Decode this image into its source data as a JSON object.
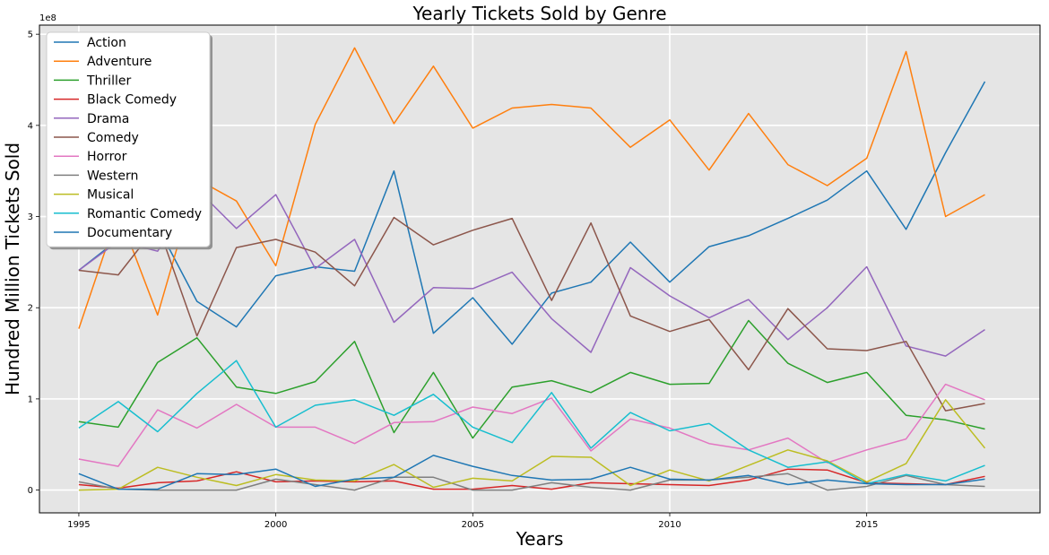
{
  "chart_data": {
    "type": "line",
    "title": "Yearly Tickets Sold by Genre",
    "xlabel": "Years",
    "ylabel": "Hundred Million Tickets Sold",
    "y_offset_label": "1e8",
    "xlim": [
      1994,
      2019.4
    ],
    "ylim": [
      -0.25,
      5.1
    ],
    "xticks": [
      1995,
      2000,
      2005,
      2010,
      2015
    ],
    "xtick_labels": [
      "1995",
      "2000",
      "2005",
      "2010",
      "2015"
    ],
    "yticks": [
      0,
      1,
      2,
      3,
      4,
      5
    ],
    "ytick_labels": [
      "0",
      "1",
      "2",
      "3",
      "4",
      "5"
    ],
    "grid": true,
    "legend_position": "upper-left",
    "x": [
      1995,
      1996,
      1997,
      1998,
      1999,
      2000,
      2001,
      2002,
      2003,
      2004,
      2005,
      2006,
      2007,
      2008,
      2009,
      2010,
      2011,
      2012,
      2013,
      2014,
      2015,
      2016,
      2017,
      2018
    ],
    "series": [
      {
        "name": "Action",
        "color": "#1f77b4",
        "values": [
          2.41,
          2.75,
          2.89,
          2.07,
          1.79,
          2.35,
          2.45,
          2.4,
          3.5,
          1.72,
          2.11,
          1.6,
          2.16,
          2.28,
          2.72,
          2.28,
          2.67,
          2.79,
          2.98,
          3.18,
          3.5,
          2.86,
          3.7,
          4.48
        ]
      },
      {
        "name": "Adventure",
        "color": "#ff7f0e",
        "values": [
          1.77,
          3.05,
          1.92,
          3.41,
          3.17,
          2.46,
          4.01,
          4.85,
          4.02,
          4.65,
          3.97,
          4.19,
          4.23,
          4.19,
          3.76,
          4.06,
          3.51,
          4.13,
          3.57,
          3.34,
          3.64,
          4.81,
          3.0,
          3.24
        ]
      },
      {
        "name": "Thriller",
        "color": "#2ca02c",
        "values": [
          0.75,
          0.69,
          1.4,
          1.67,
          1.13,
          1.06,
          1.19,
          1.63,
          0.63,
          1.29,
          0.57,
          1.13,
          1.2,
          1.07,
          1.29,
          1.16,
          1.17,
          1.86,
          1.39,
          1.18,
          1.29,
          0.82,
          0.77,
          0.67
        ]
      },
      {
        "name": "Black Comedy",
        "color": "#d62728",
        "values": [
          0.06,
          0.02,
          0.08,
          0.1,
          0.2,
          0.09,
          0.1,
          0.09,
          0.1,
          0.01,
          0.01,
          0.05,
          0.01,
          0.08,
          0.07,
          0.06,
          0.05,
          0.11,
          0.23,
          0.22,
          0.08,
          0.07,
          0.06,
          0.15
        ]
      },
      {
        "name": "Drama",
        "color": "#9467bd",
        "values": [
          2.41,
          2.73,
          2.62,
          3.3,
          2.87,
          3.24,
          2.43,
          2.75,
          1.84,
          2.22,
          2.21,
          2.39,
          1.88,
          1.51,
          2.44,
          2.13,
          1.89,
          2.09,
          1.65,
          2.0,
          2.45,
          1.58,
          1.47,
          1.76
        ]
      },
      {
        "name": "Comedy",
        "color": "#8c564b",
        "values": [
          2.41,
          2.36,
          2.91,
          1.69,
          2.66,
          2.75,
          2.61,
          2.24,
          2.99,
          2.69,
          2.85,
          2.98,
          2.08,
          2.93,
          1.91,
          1.74,
          1.87,
          1.32,
          1.99,
          1.55,
          1.53,
          1.63,
          0.87,
          0.95
        ]
      },
      {
        "name": "Horror",
        "color": "#e377c2",
        "values": [
          0.34,
          0.26,
          0.88,
          0.68,
          0.94,
          0.69,
          0.69,
          0.51,
          0.74,
          0.75,
          0.91,
          0.84,
          1.01,
          0.43,
          0.78,
          0.68,
          0.51,
          0.44,
          0.57,
          0.3,
          0.44,
          0.56,
          1.16,
          0.99
        ]
      },
      {
        "name": "Western",
        "color": "#7f7f7f",
        "values": [
          0.09,
          0.01,
          0.0,
          0.0,
          0.0,
          0.12,
          0.06,
          0.0,
          0.14,
          0.14,
          0.0,
          0.0,
          0.08,
          0.03,
          0.0,
          0.11,
          0.11,
          0.14,
          0.18,
          0.0,
          0.04,
          0.16,
          0.06,
          0.04
        ]
      },
      {
        "name": "Musical",
        "color": "#bcbd22",
        "values": [
          0.0,
          0.01,
          0.25,
          0.14,
          0.05,
          0.17,
          0.11,
          0.1,
          0.28,
          0.03,
          0.13,
          0.1,
          0.37,
          0.36,
          0.05,
          0.22,
          0.1,
          0.27,
          0.44,
          0.32,
          0.09,
          0.29,
          0.99,
          0.46
        ]
      },
      {
        "name": "Romantic Comedy",
        "color": "#17becf",
        "values": [
          0.68,
          0.97,
          0.64,
          1.06,
          1.42,
          0.69,
          0.93,
          0.99,
          0.82,
          1.05,
          0.69,
          0.52,
          1.07,
          0.46,
          0.85,
          0.65,
          0.73,
          0.44,
          0.25,
          0.31,
          0.07,
          0.17,
          0.1,
          0.27
        ]
      },
      {
        "name": "Documentary",
        "color": "#1f77b4",
        "values": [
          0.18,
          0.01,
          0.01,
          0.18,
          0.17,
          0.23,
          0.04,
          0.12,
          0.14,
          0.38,
          0.26,
          0.16,
          0.11,
          0.12,
          0.25,
          0.12,
          0.11,
          0.16,
          0.06,
          0.11,
          0.07,
          0.06,
          0.06,
          0.12
        ]
      }
    ]
  }
}
